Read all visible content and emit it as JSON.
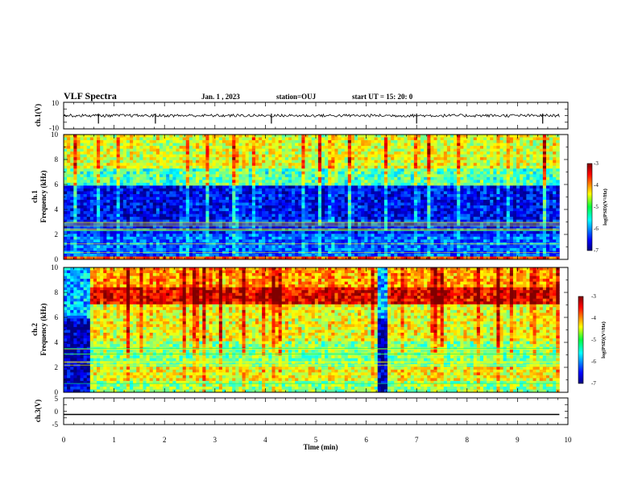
{
  "header": {
    "title": "VLF Spectra",
    "date": "Jan. 1 , 2023",
    "station": "station=OUJ",
    "start": "start UT =  15: 20: 0"
  },
  "chart_data": [
    {
      "type": "line",
      "panel": "ch1-waveform",
      "ylabel": "ch.1(V)",
      "ylim": [
        -10,
        10
      ],
      "yticks": [
        "10",
        "-10"
      ],
      "baseline": 0,
      "spikes_min": [
        0.69,
        1.82,
        4.12,
        7.0,
        9.5
      ]
    },
    {
      "type": "heatmap",
      "panel": "ch1-spectrogram",
      "ylabel_line1": "ch.1",
      "ylabel_line2": "Frequency (kHz)",
      "ylim": [
        0,
        10
      ],
      "yticks": [
        "0",
        "2",
        "4",
        "6",
        "8",
        "10"
      ],
      "colorbar": {
        "label": "log(PSD)(V²/Hz)",
        "ticks": [
          "-3",
          "-4",
          "-5",
          "-6",
          "-7"
        ],
        "range": [
          -7,
          -3
        ]
      },
      "bands_khz": [
        [
          0.0,
          0.3,
          -3.8
        ],
        [
          0.3,
          2.0,
          -6.2
        ],
        [
          2.0,
          3.2,
          -6.5
        ],
        [
          3.2,
          5.8,
          -6.7
        ],
        [
          5.8,
          7.2,
          -5.4
        ],
        [
          7.2,
          10.0,
          -4.8
        ]
      ]
    },
    {
      "type": "heatmap",
      "panel": "ch2-spectrogram",
      "ylabel_line1": "ch.2",
      "ylabel_line2": "Frequency (kHz)",
      "ylim": [
        0,
        10
      ],
      "yticks": [
        "0",
        "2",
        "4",
        "6",
        "8",
        "10"
      ],
      "colorbar": {
        "label": "log(PSD)(V²/Hz)",
        "ticks": [
          "-3",
          "-4",
          "-5",
          "-6",
          "-7"
        ],
        "range": [
          -7,
          -3
        ]
      },
      "bands_khz": [
        [
          0.0,
          1.0,
          -5.0
        ],
        [
          1.0,
          2.0,
          -4.6
        ],
        [
          2.0,
          4.0,
          -5.1
        ],
        [
          4.0,
          7.0,
          -4.7
        ],
        [
          7.0,
          8.5,
          -3.6
        ],
        [
          8.5,
          10.0,
          -4.3
        ]
      ],
      "gaps_min": [
        [
          0.0,
          0.55
        ],
        [
          6.25,
          6.4
        ]
      ]
    },
    {
      "type": "line",
      "panel": "ch3-waveform",
      "ylabel": "ch.3(V)",
      "ylim": [
        -5,
        5
      ],
      "yticks": [
        "5",
        "0",
        "-5"
      ],
      "value": -1.2
    }
  ],
  "xaxis": {
    "label": "Time (min)",
    "ticks": [
      "0",
      "1",
      "2",
      "3",
      "4",
      "5",
      "6",
      "7",
      "8",
      "9",
      "10"
    ],
    "range": [
      0,
      10
    ],
    "data_end": 9.83
  }
}
